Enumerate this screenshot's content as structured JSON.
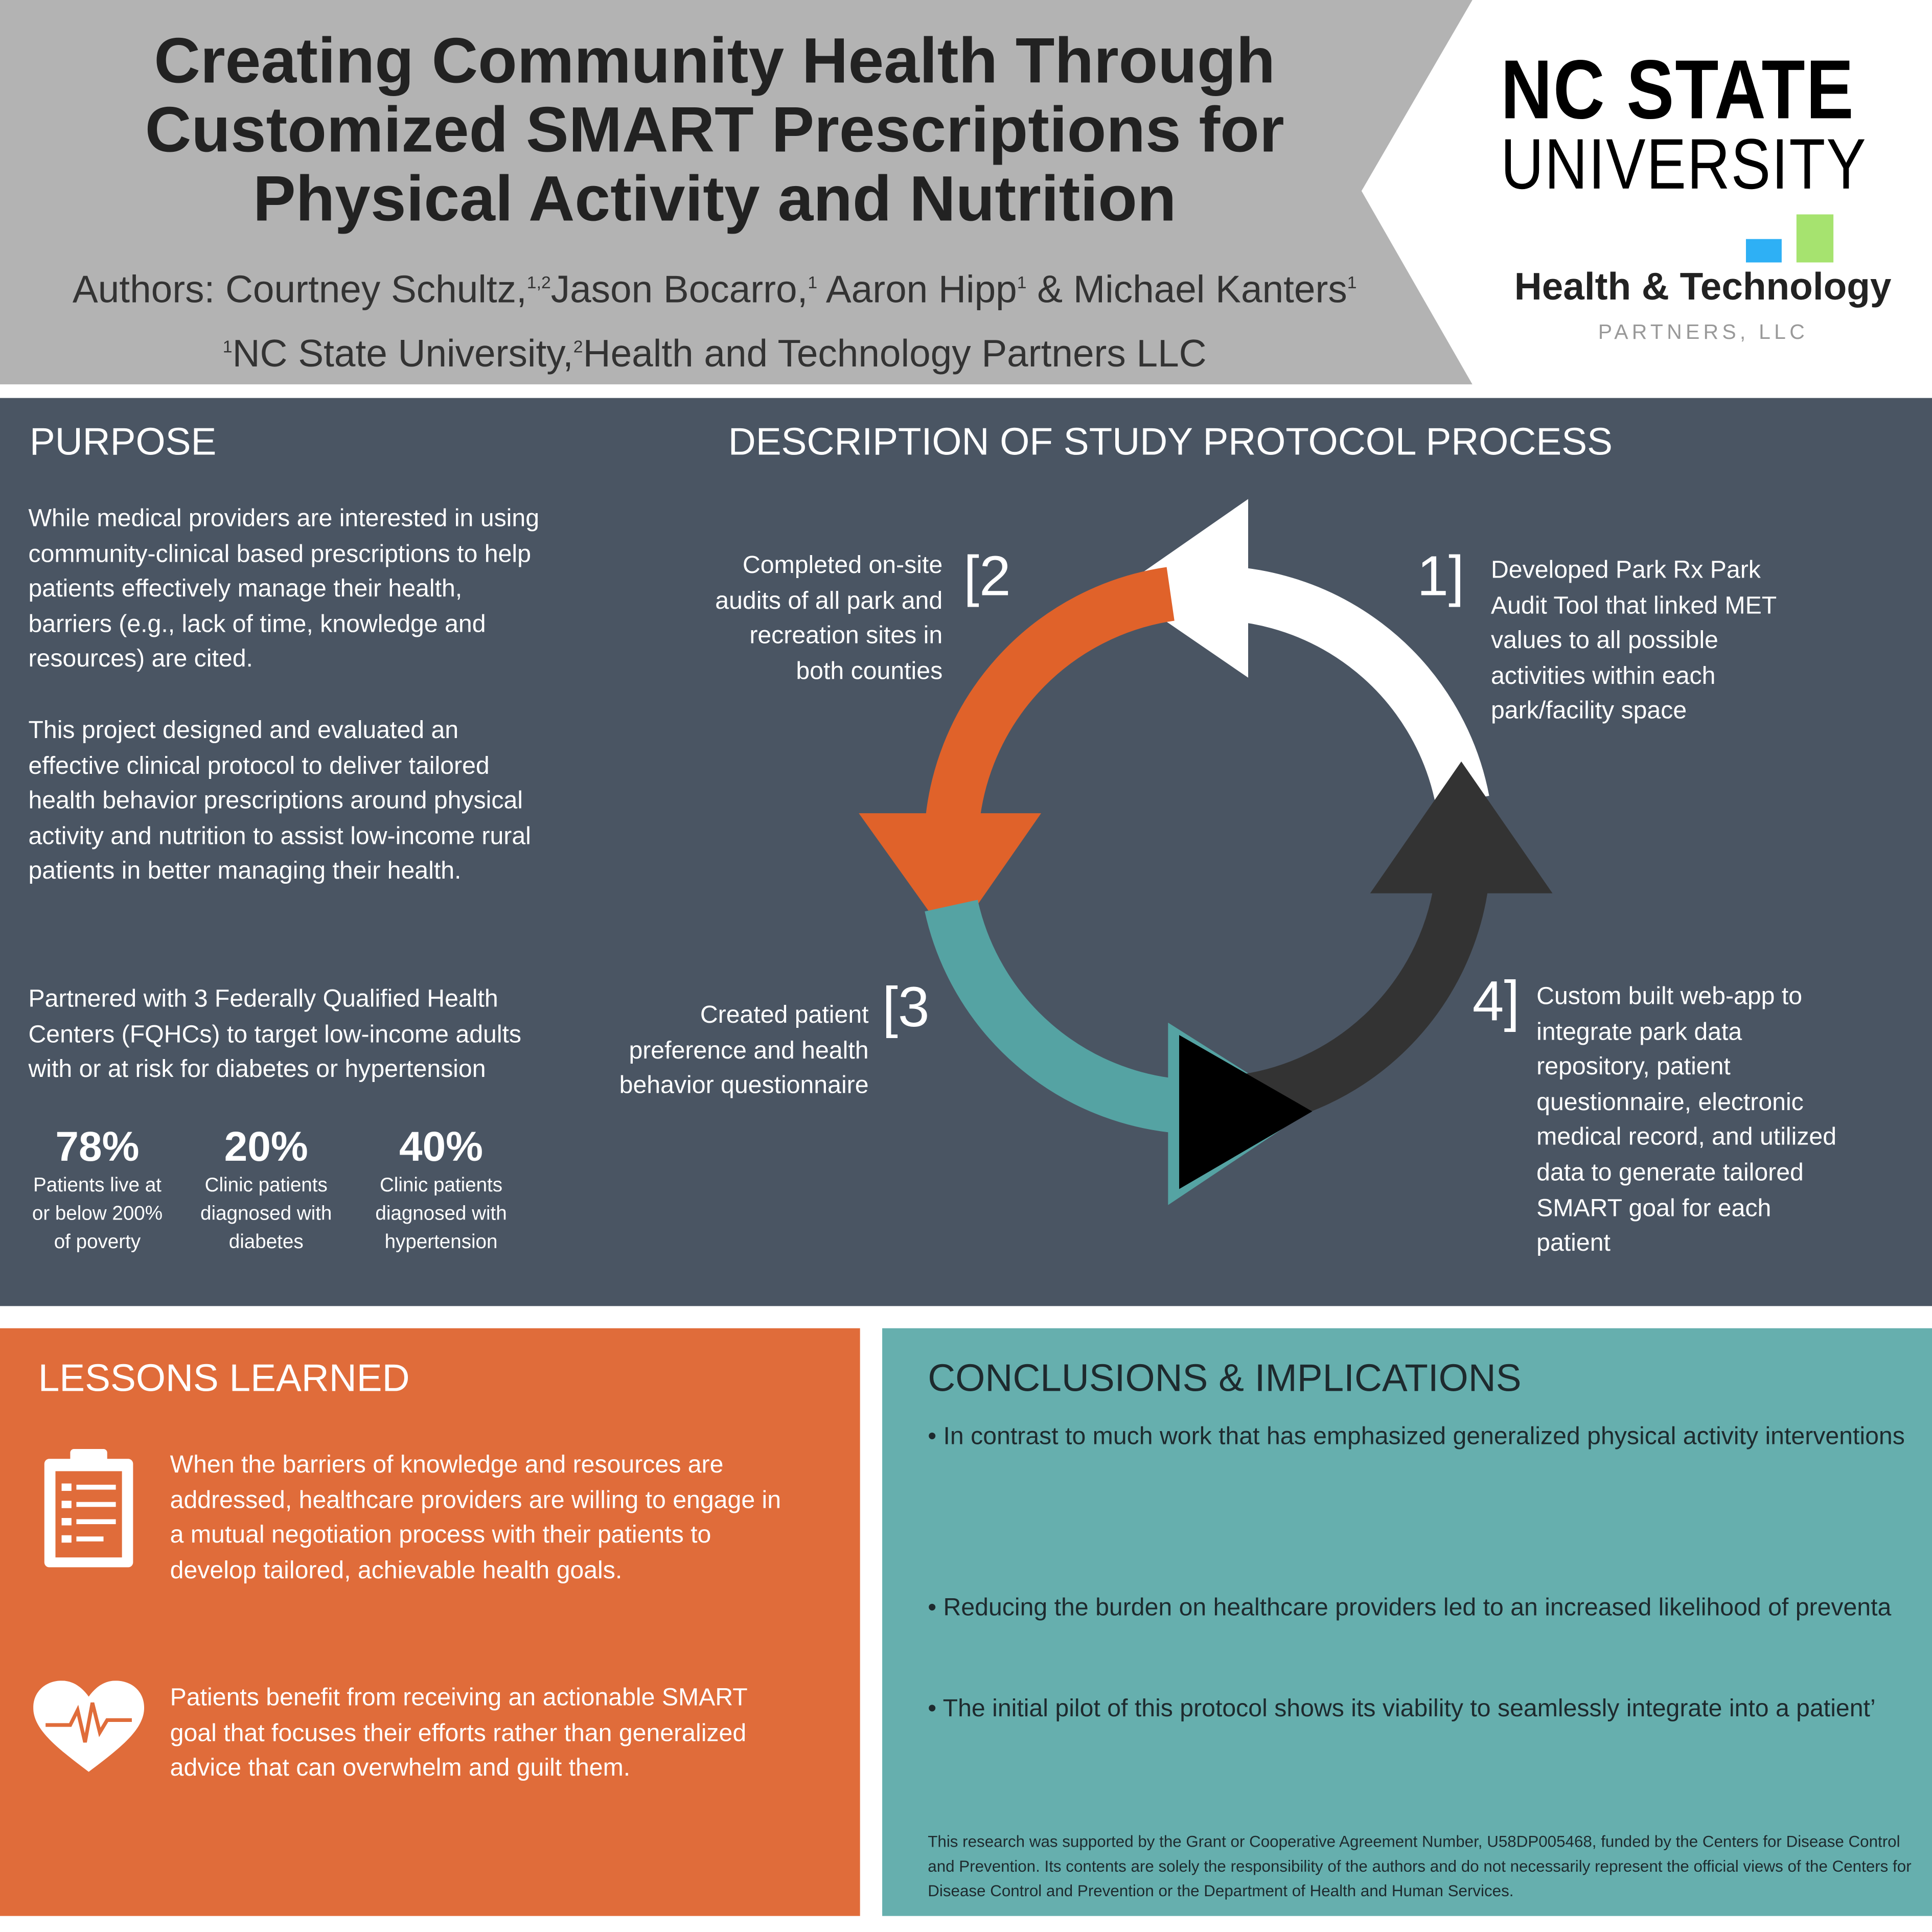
{
  "header": {
    "title_lines": [
      "Creating Community Health Through",
      "Customized SMART Prescriptions for",
      "Physical Activity and Nutrition"
    ],
    "authors_prefix": "Authors: Courtney Schultz,",
    "authors": [
      {
        "name": "Courtney Schultz",
        "sup": "1,2"
      },
      {
        "name": "Jason Bocarro",
        "sup": "1"
      },
      {
        "name": "Aaron Hipp",
        "sup": "1"
      },
      {
        "name": "Michael Kanters",
        "sup": "1"
      }
    ],
    "a1": "Jason Bocarro,",
    "a2": "Aaron Hipp",
    "a3": "& Michael Kanters",
    "aff1_sup": "1",
    "aff1": "NC State University,",
    "aff2_sup": "2",
    "aff2": "Health and Technology Partners LLC"
  },
  "logos": {
    "ncstate_line1": "NC STATE",
    "ncstate_line2": "UNIVERSITY",
    "htp_name": "Health & Technology",
    "htp_sub": "PARTNERS, LLC",
    "htp_colors": [
      "#2eb0f5",
      "#a6e36f"
    ]
  },
  "purpose": {
    "heading": "PURPOSE",
    "p1": "While medical providers are interested in using community-clinical based prescriptions to help patients effectively manage their health, barriers (e.g., lack of time, knowledge and resources) are cited.",
    "p2": "This project designed and evaluated an effective clinical protocol to deliver tailored health behavior prescriptions around physical activity and nutrition to assist low-income rural patients in better managing their health.",
    "p3": "Partnered with 3 Federally Qualified Health Centers (FQHCs) to target low-income adults with or at risk for diabetes or hypertension",
    "stats": [
      {
        "value": "78%",
        "label": "Patients live at or below 200% of poverty"
      },
      {
        "value": "20%",
        "label": "Clinic patients diagnosed with diabetes"
      },
      {
        "value": "40%",
        "label": "Clinic patients diagnosed with hypertension"
      }
    ]
  },
  "protocol": {
    "heading": "DESCRIPTION OF STUDY PROTOCOL PROCESS",
    "steps": [
      {
        "num": "1]",
        "text": "Developed Park Rx Park Audit Tool that linked MET values to all possible activities within each park/facility space"
      },
      {
        "num": "[2",
        "text": "Completed on-site audits of all park and recreation sites in both counties"
      },
      {
        "num": "[3",
        "text": "Created patient preference and health behavior questionnaire"
      },
      {
        "num": "4]",
        "text": "Custom built web-app to integrate park data repository, patient questionnaire, electronic medical record, and utilized data to generate tailored SMART goal for each patient"
      }
    ],
    "colors": {
      "step1": "#ffffff",
      "step2": "#e0622a",
      "step3": "#55a3a3",
      "step4": "#333333"
    }
  },
  "lessons": {
    "heading": "LESSONS LEARNED",
    "items": [
      {
        "icon": "clipboard-icon",
        "text": "When the barriers of knowledge and resources are addressed, healthcare providers are willing to engage in a mutual negotiation process with their patients to develop tailored, achievable health goals."
      },
      {
        "icon": "heart-pulse-icon",
        "text": "Patients benefit from receiving an actionable SMART goal that focuses their efforts rather than generalized advice that can overwhelm and guilt them."
      }
    ]
  },
  "conclusions": {
    "heading": "CONCLUSIONS & IMPLICATIONS",
    "bullets": [
      "• In contrast to much work that has emphasized generalized physical activity interventions",
      "• Reducing the burden on healthcare providers led to an increased likelihood of preventa",
      "• The initial pilot of this protocol shows its viability to seamlessly integrate into a patient’"
    ],
    "footnote": "This research was supported by the Grant or Cooperative Agreement Number, U58DP005468, funded by the Centers for Disease Control and Prevention. Its contents are solely the responsibility of the authors and do not necessarily represent the official views of the Centers for Disease Control and Prevention or the Department of Health and Human Services."
  }
}
